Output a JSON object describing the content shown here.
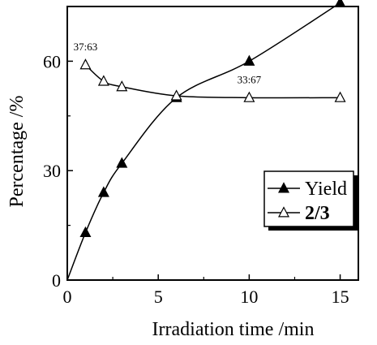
{
  "chart_data": {
    "type": "line",
    "xlabel": "Irradiation time  /min",
    "ylabel": "Percentage  /%",
    "xlim": [
      0,
      16
    ],
    "ylim": [
      0,
      75
    ],
    "xticks": [
      0,
      5,
      10,
      15
    ],
    "yticks": [
      0,
      30,
      60
    ],
    "grid": false,
    "legend_position": "bottom-right",
    "series": [
      {
        "name": "Yield",
        "marker": "filled-triangle",
        "color": "#000000",
        "x": [
          0,
          1,
          2,
          3,
          6,
          10,
          15
        ],
        "y": [
          0,
          13,
          24,
          32,
          50,
          60,
          76
        ]
      },
      {
        "name": "2/3",
        "marker": "open-triangle",
        "color": "#000000",
        "x": [
          1,
          2,
          3,
          6,
          10,
          15
        ],
        "y": [
          59,
          54.5,
          53,
          50.5,
          50,
          50
        ]
      }
    ],
    "annotations": [
      {
        "text": "37:63",
        "x": 1,
        "y": 59
      },
      {
        "text": "33:67",
        "x": 10,
        "y": 50
      }
    ]
  }
}
